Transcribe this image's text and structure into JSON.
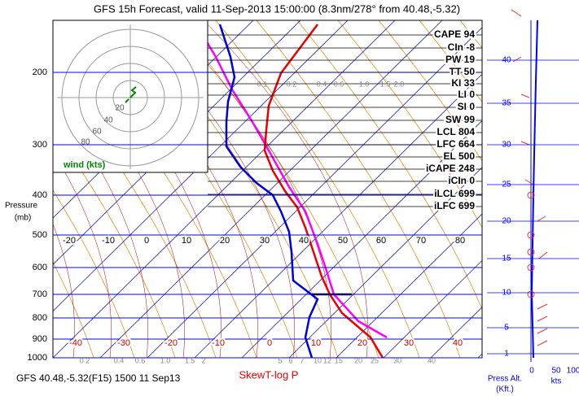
{
  "header": {
    "title": "GFS 15h Forecast, valid 11-Sep-2013 15:00:00 (8.3nm/278° from 40.48,-5.32)"
  },
  "footer": {
    "location": "GFS 40.48,-5.32(F15) 1500 11 Sep13",
    "diagram_name": "SkewT-log P"
  },
  "left_axis": {
    "label_line1": "Pressure",
    "label_line2": "(mb)",
    "labels": [
      "200",
      "300",
      "400",
      "500",
      "600",
      "700",
      "800",
      "900",
      "1000"
    ]
  },
  "indices": [
    "CAPE 94",
    "CIn -8",
    "PW 19",
    "TT 50",
    "KI 33",
    "LI 0",
    "SI 0",
    "SW 99",
    "LCL 804",
    "LFC 664",
    "EL 500",
    "iCAPE 248",
    "iCIn 0",
    "iLCL 699",
    "iLFC 699"
  ],
  "upper_temperature_labels": [
    "-20",
    "-10",
    "0",
    "10",
    "20",
    "30",
    "40",
    "50",
    "60",
    "70",
    "80"
  ],
  "lower_temperature_labels": [
    "-40",
    "-30",
    "-20",
    "-10",
    "0",
    "10",
    "20",
    "30",
    "40"
  ],
  "mixing_ratio_top": [
    "0.1",
    "0.2",
    "0.4",
    "0.6",
    "1.0",
    "1.5",
    "2.0"
  ],
  "mixing_ratio_bottom": [
    "0.2",
    "0.4",
    "0.6",
    "1.0",
    "1.5",
    "2",
    "5",
    "6",
    "7",
    "10",
    "12",
    "15",
    "20",
    "25",
    "30",
    "40"
  ],
  "hodograph": {
    "ring_labels": [
      "20",
      "40",
      "60",
      "80"
    ],
    "caption": "wind (kts)"
  },
  "right_panel": {
    "altitude_labels": [
      "40",
      "35",
      "30",
      "25",
      "20",
      "15",
      "10",
      "5",
      "1"
    ],
    "speed_labels": [
      "0",
      "50",
      "100"
    ],
    "speed_unit": "kts",
    "alt_label_line1": "Press Alt.",
    "alt_label_line2": "(Kft.)"
  }
}
